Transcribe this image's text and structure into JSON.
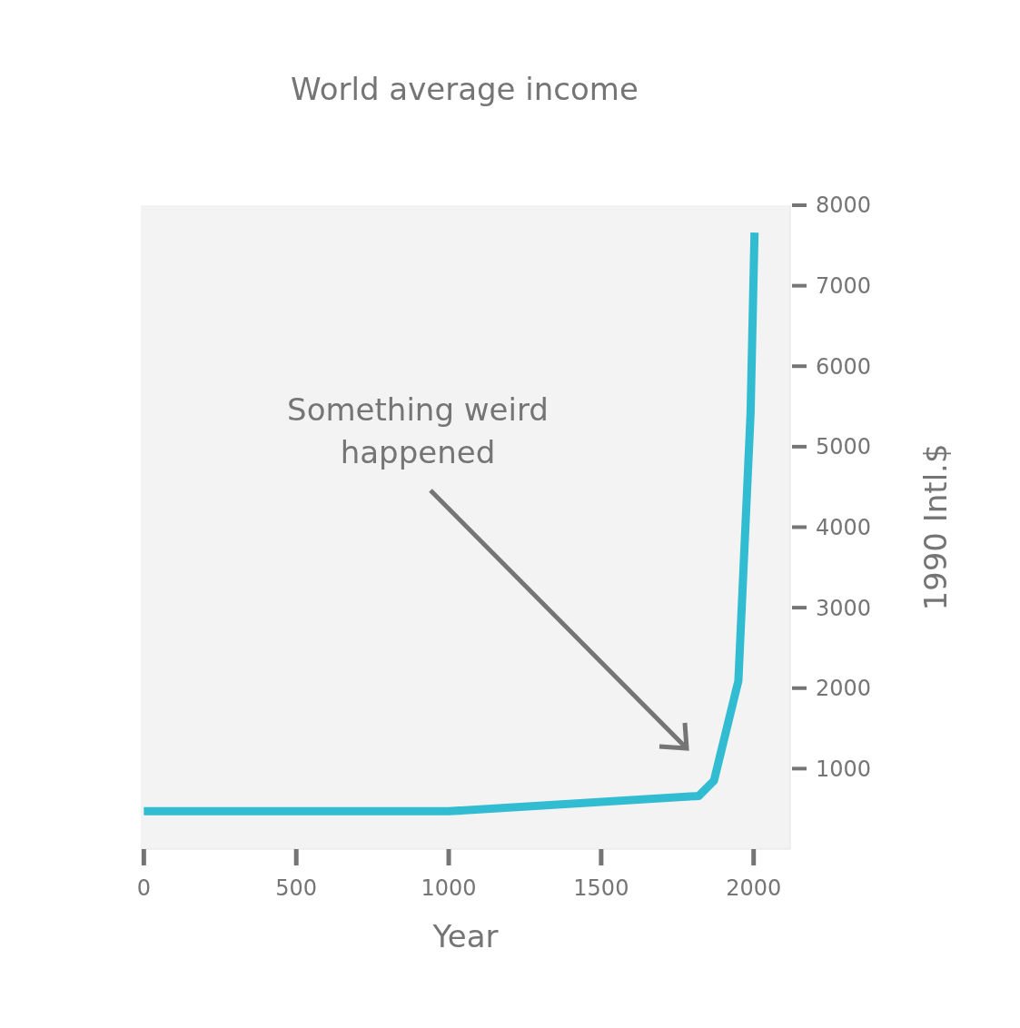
{
  "chart_data": {
    "type": "line",
    "title": "World average income",
    "xlabel": "Year",
    "ylabel": "1990 Intl.$",
    "annotations": [
      "Something weird happened"
    ],
    "x": [
      0,
      1000,
      1820,
      1870,
      1950,
      1990,
      2003
    ],
    "series": [
      {
        "color": "#32bcd1",
        "values": [
          470,
          470,
          660,
          850,
          2090,
          5410,
          7660
        ]
      }
    ],
    "xlim": [
      -10,
      2120
    ],
    "xticks": [
      0,
      500,
      1000,
      1500,
      2000
    ],
    "ylim": [
      0,
      8000
    ],
    "yticks": [
      1000,
      2000,
      3000,
      4000,
      5000,
      6000,
      7000,
      8000
    ],
    "grid": false,
    "marker": "none",
    "line_style": "solid"
  }
}
